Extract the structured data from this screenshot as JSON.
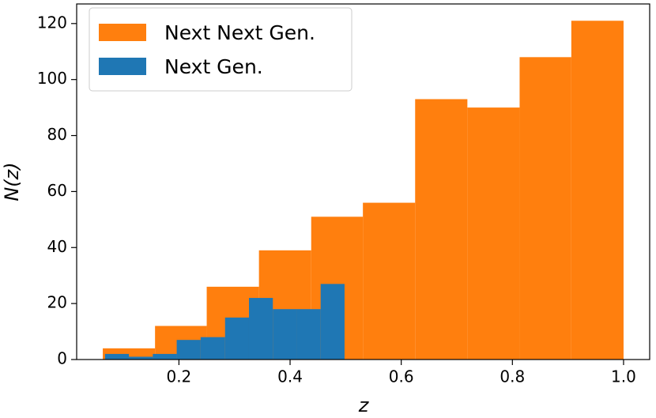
{
  "chart_data": {
    "type": "histogram",
    "xlabel": "z",
    "ylabel": "N(z)",
    "xlim": [
      0.016,
      1.047
    ],
    "ylim": [
      0,
      127
    ],
    "xticks": [
      0.2,
      0.4,
      0.6,
      0.8,
      {
        "value": 1.0,
        "label": "1.0"
      }
    ],
    "yticks": [
      0,
      20,
      40,
      60,
      80,
      100,
      120
    ],
    "legend": "upper left",
    "series": [
      {
        "name": "Next Next Gen.",
        "color": "#ff7f0e",
        "bins": [
          0.063,
          0.157,
          0.25,
          0.344,
          0.438,
          0.531,
          0.625,
          0.719,
          0.813,
          0.906,
          1.0
        ],
        "values": [
          4,
          12,
          26,
          39,
          51,
          56,
          93,
          90,
          108,
          121
        ]
      },
      {
        "name": "Next Gen.",
        "color": "#1f77b4",
        "bins": [
          0.067,
          0.11,
          0.153,
          0.196,
          0.239,
          0.283,
          0.326,
          0.369,
          0.412,
          0.455,
          0.498
        ],
        "values": [
          2,
          1,
          2,
          7,
          8,
          15,
          22,
          18,
          18,
          27
        ]
      }
    ]
  }
}
